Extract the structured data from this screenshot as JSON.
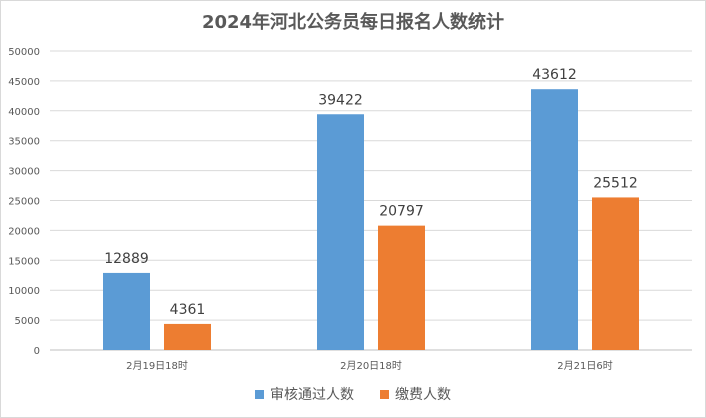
{
  "chart_data": {
    "type": "bar",
    "title": "2024年河北公务员每日报名人数统计",
    "categories": [
      "2月19日18时",
      "2月20日18时",
      "2月21日6时"
    ],
    "series": [
      {
        "name": "审核通过人数",
        "values": [
          12889,
          39422,
          43612
        ],
        "color": "#5b9bd5"
      },
      {
        "name": "缴费人数",
        "values": [
          4361,
          20797,
          25512
        ],
        "color": "#ed7d31"
      }
    ],
    "ylim": [
      0,
      50000
    ],
    "yticks": [
      0,
      5000,
      10000,
      15000,
      20000,
      25000,
      30000,
      35000,
      40000,
      45000,
      50000
    ],
    "grid": true,
    "legend": "bottom"
  }
}
